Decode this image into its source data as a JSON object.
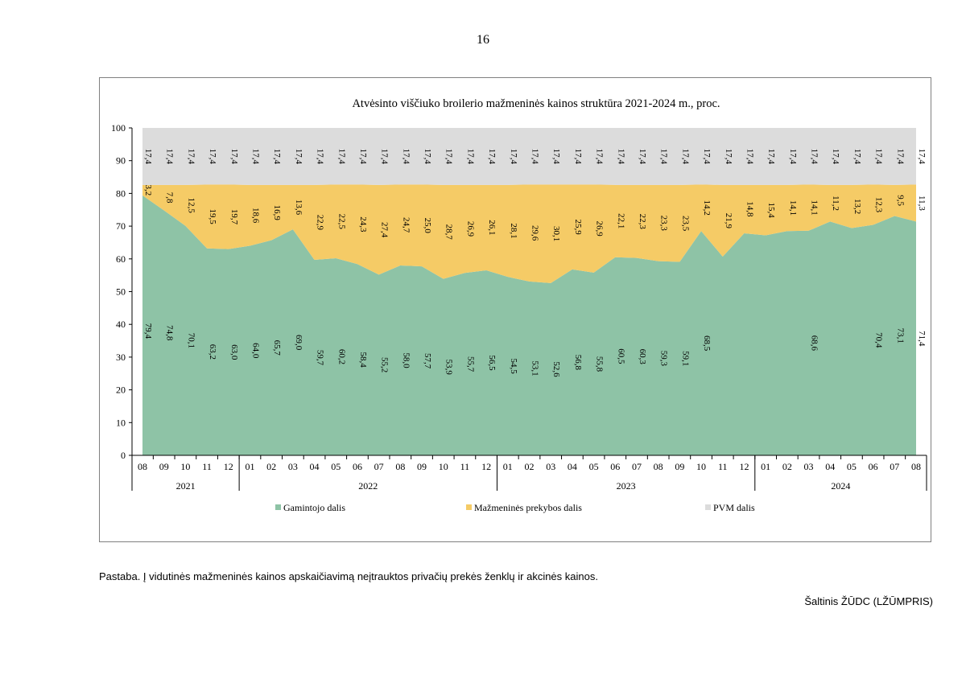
{
  "page_number": "16",
  "note": "Pastaba. Į vidutinės mažmeninės kainos apskaičiavimą neįtrauktos privačių prekės ženklų ir akcinės kainos.",
  "source": "Šaltinis ŽŪDC (LŽŪMPRIS)",
  "colors": {
    "producer": "#8ec3a6",
    "retail": "#f5cb66",
    "vat": "#dcdcdc"
  },
  "chart_data": {
    "type": "area",
    "stacked": true,
    "title": "Atvėsinto viščiuko broilerio mažmeninės kainos struktūra 2021-2024 m., proc.",
    "ylim": [
      0,
      100
    ],
    "yticks": [
      0,
      10,
      20,
      30,
      40,
      50,
      60,
      70,
      80,
      90,
      100
    ],
    "legend_position": "bottom",
    "grid": false,
    "categories": [
      "08",
      "09",
      "10",
      "11",
      "12",
      "01",
      "02",
      "03",
      "04",
      "05",
      "06",
      "07",
      "08",
      "09",
      "10",
      "11",
      "12",
      "01",
      "02",
      "03",
      "04",
      "05",
      "06",
      "07",
      "08",
      "09",
      "10",
      "11",
      "12",
      "01",
      "02",
      "03",
      "04",
      "05",
      "06",
      "07",
      "08"
    ],
    "year_groups": [
      {
        "label": "2021",
        "count": 5
      },
      {
        "label": "2022",
        "count": 12
      },
      {
        "label": "2023",
        "count": 12
      },
      {
        "label": "2024",
        "count": 8
      }
    ],
    "series": [
      {
        "name": "Gamintojo dalis",
        "color_key": "producer",
        "values": [
          79.4,
          74.8,
          70.1,
          63.2,
          63.0,
          64.0,
          65.7,
          69.0,
          59.7,
          60.2,
          58.4,
          55.2,
          58.0,
          57.7,
          53.9,
          55.7,
          56.5,
          54.5,
          53.1,
          52.6,
          56.8,
          55.8,
          60.5,
          60.3,
          59.3,
          59.1,
          68.5,
          60.7,
          67.8,
          67.2,
          68.5,
          68.6,
          71.4,
          69.4,
          70.4,
          73.1,
          71.4
        ],
        "labels": [
          "79,4",
          "74,8",
          "70,1",
          "63,2",
          "63,0",
          "64,0",
          "65,7",
          "69,0",
          "59,7",
          "60,2",
          "58,4",
          "55,2",
          "58,0",
          "57,7",
          "53,9",
          "55,7",
          "56,5",
          "54,5",
          "53,1",
          "52,6",
          "56,8",
          "55,8",
          "60,5",
          "60,3",
          "59,3",
          "59,1",
          "68,5",
          "",
          "",
          "",
          "",
          "68,6",
          "",
          "",
          "70,4",
          "73,1",
          "71,4"
        ]
      },
      {
        "name": "Mažmeninės prekybos dalis",
        "color_key": "retail",
        "values": [
          3.2,
          7.8,
          12.5,
          19.5,
          19.7,
          18.6,
          16.9,
          13.6,
          22.9,
          22.5,
          24.3,
          27.4,
          24.7,
          25.0,
          28.7,
          26.9,
          26.1,
          28.1,
          29.6,
          30.1,
          25.9,
          26.9,
          22.1,
          22.3,
          23.3,
          23.5,
          14.2,
          21.9,
          14.8,
          15.4,
          14.1,
          14.1,
          11.2,
          13.2,
          12.3,
          9.5,
          11.3
        ],
        "labels": [
          "3,2",
          "7,8",
          "12,5",
          "19,5",
          "19,7",
          "18,6",
          "16,9",
          "13,6",
          "22,9",
          "22,5",
          "24,3",
          "27,4",
          "24,7",
          "25,0",
          "28,7",
          "26,9",
          "26,1",
          "28,1",
          "29,6",
          "30,1",
          "25,9",
          "26,9",
          "22,1",
          "22,3",
          "23,3",
          "23,5",
          "14,2",
          "21,9",
          "14,8",
          "15,4",
          "14,1",
          "14,1",
          "11,2",
          "13,2",
          "12,3",
          "9,5",
          "11,3"
        ]
      },
      {
        "name": "PVM dalis",
        "color_key": "vat",
        "values": [
          17.4,
          17.4,
          17.4,
          17.4,
          17.4,
          17.4,
          17.4,
          17.4,
          17.4,
          17.4,
          17.4,
          17.4,
          17.4,
          17.4,
          17.4,
          17.4,
          17.4,
          17.4,
          17.4,
          17.4,
          17.4,
          17.4,
          17.4,
          17.4,
          17.4,
          17.4,
          17.4,
          17.4,
          17.4,
          17.4,
          17.4,
          17.4,
          17.4,
          17.4,
          17.4,
          17.4,
          17.4
        ],
        "labels": [
          "17,4",
          "17,4",
          "17,4",
          "17,4",
          "17,4",
          "17,4",
          "17,4",
          "17,4",
          "17,4",
          "17,4",
          "17,4",
          "17,4",
          "17,4",
          "17,4",
          "17,4",
          "17,4",
          "17,4",
          "17,4",
          "17,4",
          "17,4",
          "17,4",
          "17,4",
          "17,4",
          "17,4",
          "17,4",
          "17,4",
          "17,4",
          "17,4",
          "17,4",
          "17,4",
          "17,4",
          "17,4",
          "17,4",
          "17,4",
          "17,4",
          "17,4",
          "17,4"
        ]
      }
    ]
  }
}
